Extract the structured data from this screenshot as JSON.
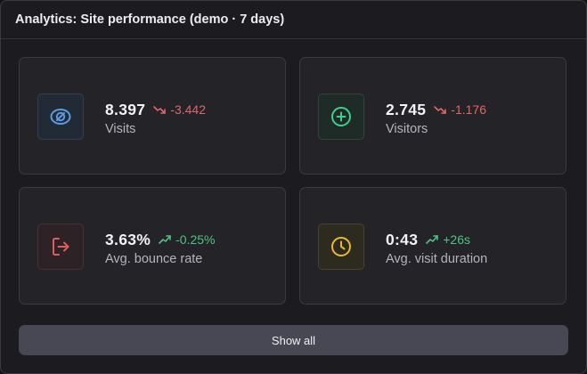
{
  "header": {
    "title": "Analytics: Site performance (demo · 7 days)"
  },
  "colors": {
    "down": "#e06666",
    "up": "#4fc583",
    "visits_accent": "#4a90d9",
    "visitors_accent": "#3ecf8e",
    "bounce_accent": "#e05d5d",
    "duration_accent": "#e8b931"
  },
  "cards": [
    {
      "icon": "eye-icon",
      "value": "8.397",
      "change": "-3.442",
      "direction": "down",
      "label": "Visits"
    },
    {
      "icon": "plus-circle-icon",
      "value": "2.745",
      "change": "-1.176",
      "direction": "down",
      "label": "Visitors"
    },
    {
      "icon": "exit-icon",
      "value": "3.63%",
      "change": "-0.25%",
      "direction": "up",
      "label": "Avg. bounce rate"
    },
    {
      "icon": "clock-icon",
      "value": "0:43",
      "change": "+26s",
      "direction": "up",
      "label": "Avg. visit duration"
    }
  ],
  "actions": {
    "show_all": "Show all"
  }
}
